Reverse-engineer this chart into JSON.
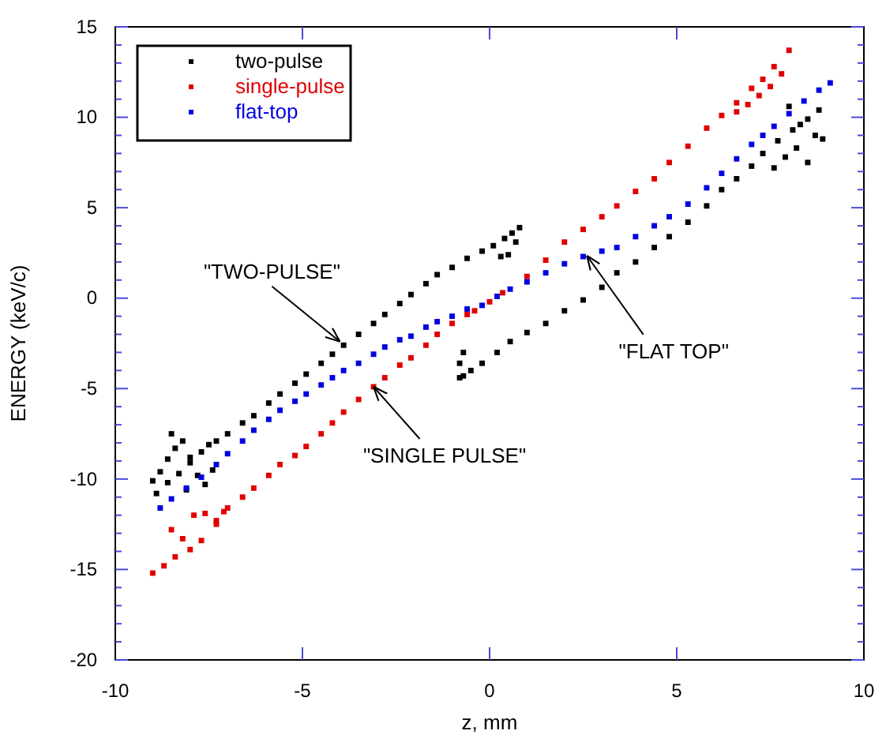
{
  "chart_data": {
    "type": "scatter",
    "xlabel": "z, mm",
    "ylabel": "ENERGY (keV/c)",
    "xlim": [
      -10,
      10
    ],
    "xticks": [
      -10,
      -5,
      0,
      5,
      10
    ],
    "ylim": [
      -20,
      15
    ],
    "yticks": [
      -20,
      {
        "value": -19,
        "label": null
      },
      {
        "value": -18,
        "label": null
      },
      {
        "value": -17,
        "label": null
      },
      {
        "value": -16,
        "label": null
      },
      -15,
      {
        "value": -14,
        "label": null
      },
      {
        "value": -13,
        "label": null
      },
      {
        "value": -12,
        "label": null
      },
      {
        "value": -11,
        "label": null
      },
      -10,
      {
        "value": -9,
        "label": null
      },
      {
        "value": -8,
        "label": null
      },
      {
        "value": -7,
        "label": null
      },
      {
        "value": -6,
        "label": null
      },
      -5,
      {
        "value": -4,
        "label": null
      },
      {
        "value": -3,
        "label": null
      },
      {
        "value": -2,
        "label": null
      },
      {
        "value": -1,
        "label": null
      },
      0,
      {
        "value": 1,
        "label": null
      },
      {
        "value": 2,
        "label": null
      },
      {
        "value": 3,
        "label": null
      },
      {
        "value": 4,
        "label": null
      },
      5,
      {
        "value": 6,
        "label": null
      },
      {
        "value": 7,
        "label": null
      },
      {
        "value": 8,
        "label": null
      },
      {
        "value": 9,
        "label": null
      },
      10,
      {
        "value": 11,
        "label": null
      },
      {
        "value": 12,
        "label": null
      },
      {
        "value": 13,
        "label": null
      },
      {
        "value": 14,
        "label": null
      },
      15
    ],
    "grid": false,
    "legend": "top left",
    "marker": "square",
    "series": [
      {
        "name": "two-pulse",
        "color": "#000000",
        "x": [
          -8.9,
          -8.6,
          -8.3,
          -8,
          -7.7,
          -7.3,
          -7,
          -6.6,
          -6.3,
          -5.9,
          -5.6,
          -5.2,
          -4.9,
          -4.5,
          -4.2,
          -3.9,
          -3.5,
          -3.1,
          -2.8,
          -2.4,
          -2.1,
          -1.7,
          -1.4,
          -1,
          -0.6,
          -0.2,
          0.1,
          0.4,
          0.6,
          0.8,
          0.7,
          0.5,
          0.3,
          -9,
          -8.8,
          -8.6,
          -8.4,
          -8.2,
          -8,
          -7.8,
          -7.5,
          -7.4,
          -8.5,
          -8.1,
          -7.6,
          -0.8,
          -0.8,
          -0.7,
          -0.7,
          -0.5,
          -0.2,
          0.2,
          0.55,
          1,
          1.5,
          2,
          2.5,
          3,
          3.4,
          3.9,
          4.4,
          4.8,
          5.3,
          5.8,
          6.2,
          6.6,
          7,
          7.3,
          7.7,
          8.1,
          8.5,
          8.8,
          7.6,
          7.9,
          8.2,
          8.5,
          8.7,
          8.9,
          8.3,
          8
        ],
        "values": [
          -10.8,
          -10.2,
          -9.7,
          -9.1,
          -8.5,
          -7.9,
          -7.5,
          -6.9,
          -6.5,
          -5.8,
          -5.3,
          -4.7,
          -4.2,
          -3.6,
          -3.1,
          -2.6,
          -2,
          -1.4,
          -0.9,
          -0.3,
          0.2,
          0.8,
          1.3,
          1.7,
          2.2,
          2.6,
          2.9,
          3.3,
          3.6,
          3.9,
          3.1,
          2.4,
          2.3,
          -10.1,
          -9.6,
          -8.9,
          -8.3,
          -7.9,
          -8.8,
          -9.8,
          -8.1,
          -9.5,
          -7.5,
          -10.6,
          -10.3,
          -4.4,
          -3.6,
          -3,
          -4.3,
          -4,
          -3.6,
          -3,
          -2.4,
          -1.9,
          -1.4,
          -0.7,
          -0.1,
          0.6,
          1.4,
          2,
          2.8,
          3.4,
          4.2,
          5.1,
          6,
          6.6,
          7.3,
          8,
          8.7,
          9.3,
          9.9,
          10.4,
          7.2,
          7.8,
          8.3,
          7.5,
          9,
          8.8,
          9.6,
          10.6
        ]
      },
      {
        "name": "single-pulse",
        "color": "#e00000",
        "x": [
          -9,
          -8.7,
          -8.4,
          -8,
          -7.7,
          -7.3,
          -7,
          -6.6,
          -6.3,
          -5.9,
          -5.6,
          -5.2,
          -4.9,
          -4.5,
          -4.2,
          -3.9,
          -3.5,
          -3.1,
          -2.8,
          -2.4,
          -2.1,
          -1.7,
          -1.4,
          -1,
          -0.6,
          -0.4,
          0,
          0.35,
          1,
          1.5,
          2,
          2.5,
          3,
          3.4,
          3.9,
          4.4,
          4.8,
          5.3,
          5.8,
          6.2,
          6.6,
          7,
          7.3,
          7.6,
          8,
          -8.5,
          -8.2,
          -7.9,
          -7.6,
          -7.3,
          -7.1,
          6.6,
          6.9,
          7.2,
          7.5,
          7.8
        ],
        "values": [
          -15.2,
          -14.8,
          -14.3,
          -13.9,
          -13.4,
          -12.3,
          -11.6,
          -11,
          -10.5,
          -9.8,
          -9.2,
          -8.7,
          -8.2,
          -7.5,
          -6.9,
          -6.3,
          -5.6,
          -4.9,
          -4.4,
          -3.7,
          -3.3,
          -2.6,
          -2,
          -1.4,
          -0.9,
          -0.7,
          -0.2,
          0.3,
          1.2,
          2.1,
          3.1,
          3.8,
          4.5,
          5.1,
          5.9,
          6.6,
          7.5,
          8.4,
          9.4,
          10.1,
          10.8,
          11.6,
          12.1,
          12.8,
          13.7,
          -12.8,
          -13.3,
          -12,
          -11.9,
          -12.5,
          -11.8,
          10.3,
          10.7,
          11.2,
          11.7,
          12.4
        ]
      },
      {
        "name": "flat-top",
        "color": "#0000e0",
        "x": [
          -8.8,
          -8.5,
          -8.1,
          -7.7,
          -7.3,
          -7,
          -6.6,
          -6.3,
          -5.9,
          -5.6,
          -5.2,
          -4.9,
          -4.5,
          -4.2,
          -3.9,
          -3.5,
          -3.1,
          -2.8,
          -2.4,
          -2.1,
          -1.7,
          -1.4,
          -1,
          -0.6,
          -0.2,
          0.2,
          0.55,
          1,
          1.5,
          2,
          2.5,
          3,
          3.4,
          3.9,
          4.4,
          4.8,
          5.3,
          5.8,
          6.2,
          6.6,
          7,
          7.3,
          7.6,
          8,
          8.4,
          8.8,
          9.1
        ],
        "values": [
          -11.6,
          -11.1,
          -10.5,
          -9.9,
          -9.2,
          -8.6,
          -7.9,
          -7.3,
          -6.7,
          -6.2,
          -5.7,
          -5.3,
          -4.8,
          -4.4,
          -4,
          -3.6,
          -3.1,
          -2.7,
          -2.3,
          -2.1,
          -1.6,
          -1.3,
          -1,
          -0.6,
          -0.4,
          0.1,
          0.5,
          0.9,
          1.4,
          1.9,
          2.3,
          2.6,
          2.8,
          3.4,
          4,
          4.5,
          5.2,
          6.1,
          6.9,
          7.7,
          8.5,
          9,
          9.5,
          10.2,
          10.9,
          11.5,
          11.9
        ]
      }
    ],
    "annotations": [
      {
        "text": "\"TWO-PULSE\"",
        "x": -4,
        "y": -2.4
      },
      {
        "text": "\"SINGLE PULSE\"",
        "x": -3.1,
        "y": -4.9
      },
      {
        "text": "\"FLAT TOP\"",
        "x": 2.6,
        "y": 2.35
      }
    ]
  }
}
